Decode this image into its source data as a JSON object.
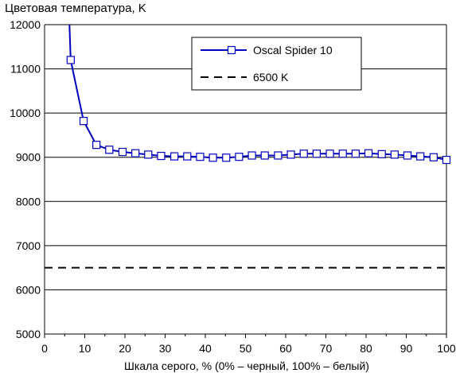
{
  "chart_data": {
    "type": "line",
    "title": "Цветовая температура, K",
    "xlabel": "Шкала серого, % (0% – черный, 100% – белый)",
    "ylabel": "",
    "xlim": [
      0,
      100
    ],
    "ylim": [
      5000,
      12000
    ],
    "x_ticks": [
      0,
      10,
      20,
      30,
      40,
      50,
      60,
      70,
      80,
      90,
      100
    ],
    "y_ticks": [
      5000,
      6000,
      7000,
      8000,
      9000,
      10000,
      11000,
      12000
    ],
    "grid": "horizontal",
    "legend_position": "top-right",
    "series": [
      {
        "name": "Oscal Spider 10",
        "color": "#0000c0",
        "marker": "square",
        "style": "solid",
        "x": [
          6.5,
          9.7,
          12.9,
          16.1,
          19.4,
          22.6,
          25.8,
          29.0,
          32.3,
          35.5,
          38.7,
          41.9,
          45.2,
          48.4,
          51.6,
          54.8,
          58.1,
          61.3,
          64.5,
          67.7,
          71.0,
          74.2,
          77.4,
          80.6,
          83.9,
          87.1,
          90.3,
          93.5,
          96.8,
          100
        ],
        "y": [
          11200,
          9820,
          9280,
          9170,
          9120,
          9090,
          9060,
          9030,
          9020,
          9020,
          9010,
          8990,
          8990,
          9010,
          9040,
          9040,
          9040,
          9060,
          9080,
          9080,
          9080,
          9080,
          9080,
          9090,
          9070,
          9060,
          9040,
          9020,
          9000,
          8940
        ],
        "line_start": {
          "x": 6.2,
          "y": 12000
        }
      },
      {
        "name": "6500 K",
        "color": "#000000",
        "marker": "none",
        "style": "dashed",
        "x": [
          0,
          100
        ],
        "y": [
          6500,
          6500
        ]
      }
    ]
  }
}
